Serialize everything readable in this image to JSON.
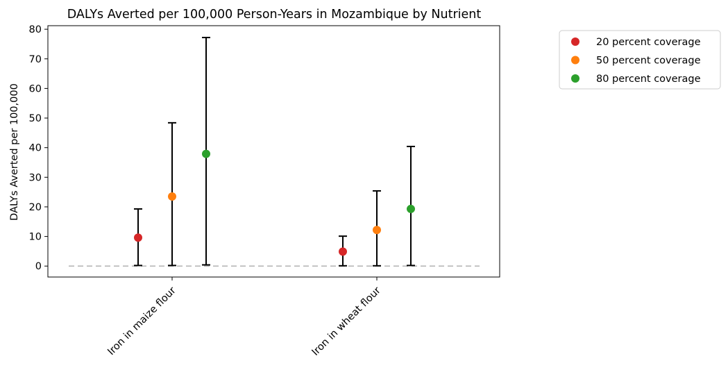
{
  "chart_data": {
    "type": "scatter",
    "title": "DALYs Averted per 100,000 Person-Years in Mozambique by Nutrient",
    "xlabel": "",
    "ylabel": "DALYs Averted per 100,000",
    "categories": [
      "Iron in maize flour",
      "Iron in wheat flour"
    ],
    "ylim": [
      -3.7,
      81.2
    ],
    "yticks": [
      0,
      10,
      20,
      30,
      40,
      50,
      60,
      70,
      80
    ],
    "grid": false,
    "legend_position": "outside-top-right",
    "baseline": {
      "value": 0,
      "style": "dashed",
      "color": "#bbbbbb"
    },
    "series": [
      {
        "name": "20 percent coverage",
        "color": "#d62728",
        "values": [
          9.6,
          4.9
        ],
        "lower": [
          0.2,
          0.1
        ],
        "upper": [
          19.3,
          10.1
        ]
      },
      {
        "name": "50 percent coverage",
        "color": "#ff7f0e",
        "values": [
          23.5,
          12.2
        ],
        "lower": [
          0.2,
          0.1
        ],
        "upper": [
          48.4,
          25.4
        ]
      },
      {
        "name": "80 percent coverage",
        "color": "#2ca02c",
        "values": [
          37.9,
          19.3
        ],
        "lower": [
          0.4,
          0.2
        ],
        "upper": [
          77.2,
          40.4
        ]
      }
    ]
  }
}
